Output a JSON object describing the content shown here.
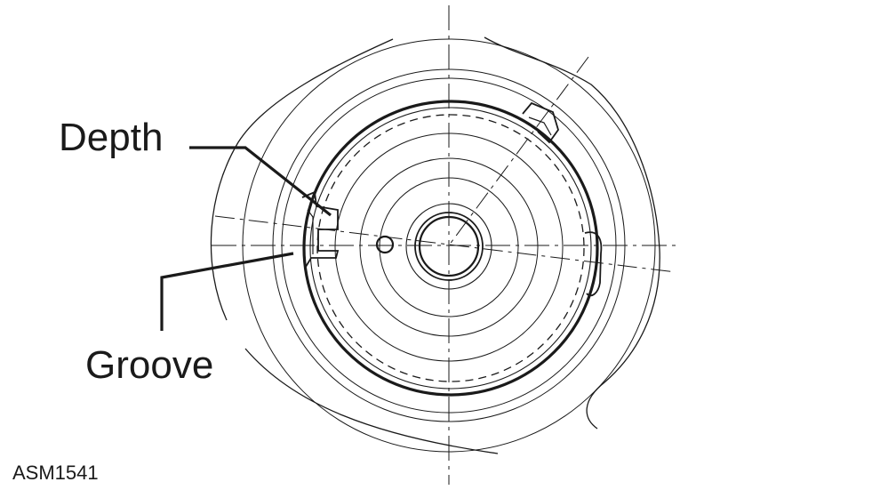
{
  "labels": {
    "depth": "Depth",
    "groove": "Groove",
    "figure_code": "ASM1541"
  },
  "colors": {
    "ink": "#1a1a1a",
    "background": "#ffffff"
  }
}
